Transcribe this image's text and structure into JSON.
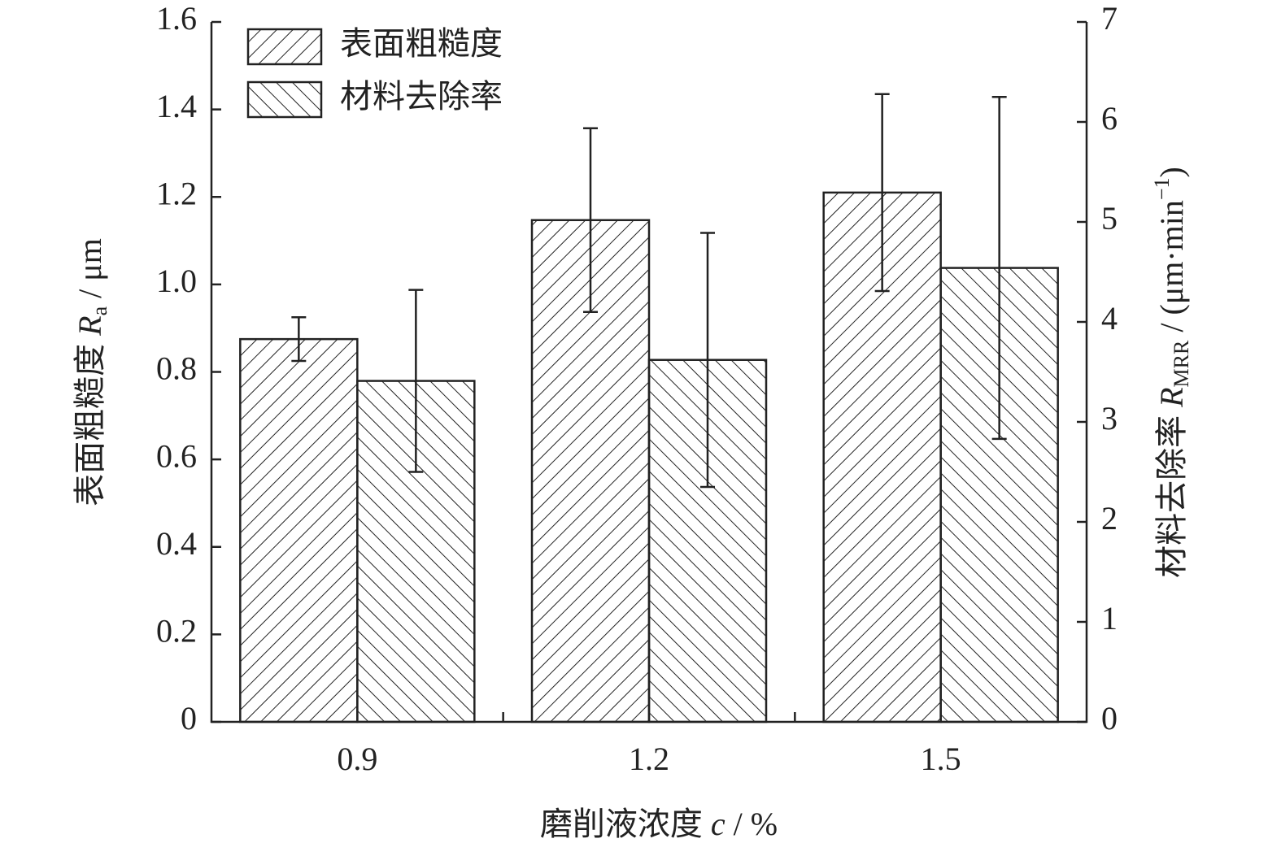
{
  "chart_data": {
    "type": "bar",
    "categories": [
      "0.9",
      "1.2",
      "1.5"
    ],
    "xlabel_parts": [
      "磨削液浓度 ",
      "c",
      " / %"
    ],
    "ylabel_parts": [
      "表面粗糙度 ",
      "R",
      "a",
      " / μm"
    ],
    "y2label_parts": [
      "材料去除率 ",
      "R",
      "MRR",
      " / (μm·min",
      "−1",
      ")"
    ],
    "ylim": [
      0,
      1.6
    ],
    "yticks": [
      0,
      0.2,
      0.4,
      0.6,
      0.8,
      {
        "value": 1,
        "label": "1.0"
      },
      1.2,
      1.4,
      1.6
    ],
    "y2lim": [
      0,
      7
    ],
    "y2ticks": [
      0,
      1,
      2,
      3,
      4,
      5,
      6,
      7
    ],
    "legend": "upper left",
    "series": [
      {
        "name": "表面粗糙度",
        "color": "#222222",
        "hatch": "/",
        "values": [
          0.875,
          1.147,
          1.21
        ],
        "errors": [
          0.05,
          0.21,
          0.225
        ]
      },
      {
        "name": "材料去除率",
        "color": "#222222",
        "hatch": "\\",
        "axis": "y2",
        "values": [
          3.41,
          3.62,
          4.54
        ],
        "errors": [
          0.91,
          1.27,
          1.71
        ]
      }
    ]
  }
}
